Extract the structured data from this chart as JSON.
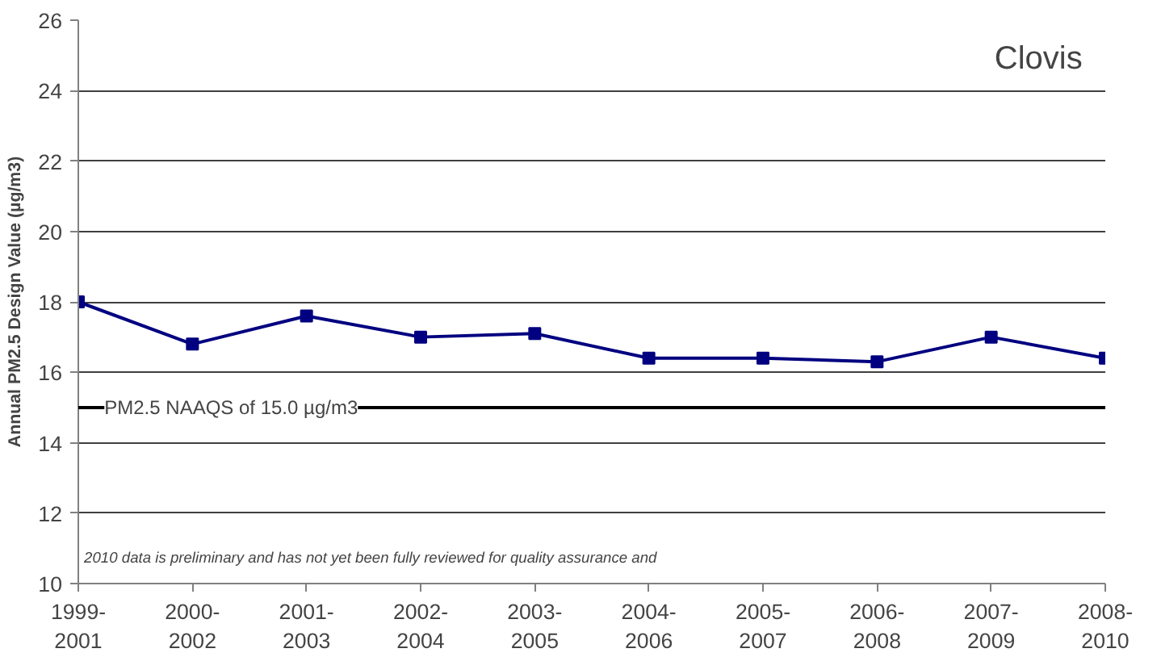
{
  "chart_data": {
    "type": "line",
    "title": "Clovis",
    "ylabel": "Annual PM2.5 Design Value (µg/m3)",
    "categories": [
      "1999-\n2001",
      "2000-\n2002",
      "2001-\n2003",
      "2002-\n2004",
      "2003-\n2005",
      "2004-\n2006",
      "2005-\n2007",
      "2006-\n2008",
      "2007-\n2009",
      "2008-\n2010"
    ],
    "series": [
      {
        "color": "#000080",
        "values": [
          18.0,
          16.8,
          17.6,
          17.0,
          17.1,
          16.4,
          16.4,
          16.3,
          17.0,
          16.4
        ]
      }
    ],
    "ylim": [
      10,
      26
    ],
    "yticks": [
      10,
      12,
      14,
      16,
      18,
      20,
      22,
      24,
      26
    ],
    "grid": "y",
    "marker": "square",
    "line_style": "solid",
    "ref_lines": [
      {
        "axis": "y",
        "value": 15,
        "label": "PM2.5 NAAQS of 15.0 µg/m3",
        "color": "#000000"
      }
    ],
    "annotations": [
      "2010 data is preliminary and has not yet been fully reviewed for quality assurance and"
    ]
  }
}
